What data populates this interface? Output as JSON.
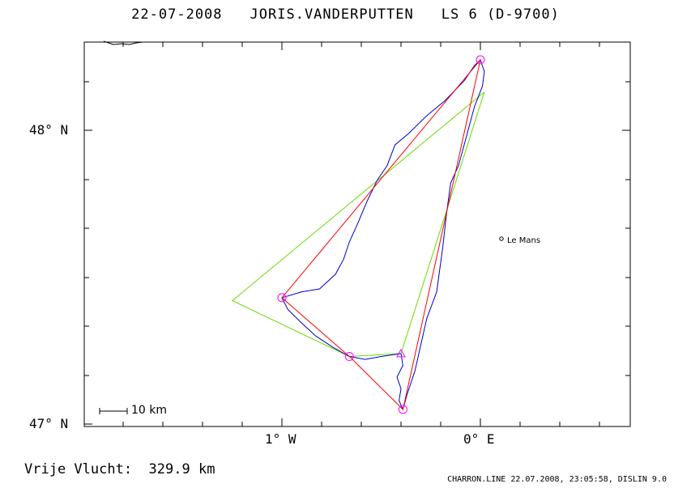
{
  "header": {
    "date": "22-07-2008",
    "pilot": "JORIS.VANDERPUTTEN",
    "glider": "LS 6 (D-9700)"
  },
  "axes": {
    "lat_labels": [
      "48° N",
      "47° N"
    ],
    "lon_labels": [
      "1° W",
      "0° E"
    ]
  },
  "city": {
    "name": "Le Mans",
    "marker": "o"
  },
  "scale": {
    "label": "10 km"
  },
  "summary": {
    "label": "Vrije Vlucht:",
    "distance": "329.9 km"
  },
  "footer": {
    "text": "CHARRON.LINE 22.07.2008, 23:05:58, DISLIN 9.0"
  },
  "colors": {
    "frame": "#000000",
    "track": "#0000cc",
    "free_flight_triangle": "#66dd00",
    "task_legs": "#ff0000",
    "turnpoints": "#ff00ff",
    "dashed_segment": "#00aa00"
  },
  "map": {
    "lon_range": [
      -2.0,
      0.75
    ],
    "lat_range": [
      47.0,
      48.3
    ],
    "task_turnpoints": [
      {
        "lon": 0.0,
        "lat": 48.24
      },
      {
        "lon": -1.0,
        "lat": 47.43
      },
      {
        "lon": -0.66,
        "lat": 47.23
      },
      {
        "lon": -0.39,
        "lat": 47.05
      },
      {
        "lon": -0.0,
        "lat": 48.24
      }
    ],
    "start_triangle": {
      "lon": -0.4,
      "lat": 47.24
    },
    "free_flight_triangle": [
      {
        "lon": 0.02,
        "lat": 48.13
      },
      {
        "lon": -1.25,
        "lat": 47.42
      },
      {
        "lon": -0.66,
        "lat": 47.23
      },
      {
        "lon": -0.4,
        "lat": 47.24
      },
      {
        "lon": 0.02,
        "lat": 48.13
      }
    ],
    "track": [
      {
        "lon": -0.4,
        "lat": 47.24
      },
      {
        "lon": -0.39,
        "lat": 47.2
      },
      {
        "lon": -0.42,
        "lat": 47.16
      },
      {
        "lon": -0.4,
        "lat": 47.12
      },
      {
        "lon": -0.41,
        "lat": 47.08
      },
      {
        "lon": -0.39,
        "lat": 47.05
      },
      {
        "lon": -0.37,
        "lat": 47.1
      },
      {
        "lon": -0.33,
        "lat": 47.18
      },
      {
        "lon": -0.3,
        "lat": 47.27
      },
      {
        "lon": -0.27,
        "lat": 47.36
      },
      {
        "lon": -0.22,
        "lat": 47.45
      },
      {
        "lon": -0.21,
        "lat": 47.5
      },
      {
        "lon": -0.19,
        "lat": 47.6
      },
      {
        "lon": -0.17,
        "lat": 47.72
      },
      {
        "lon": -0.15,
        "lat": 47.82
      },
      {
        "lon": -0.11,
        "lat": 47.88
      },
      {
        "lon": -0.07,
        "lat": 47.98
      },
      {
        "lon": -0.03,
        "lat": 48.08
      },
      {
        "lon": 0.01,
        "lat": 48.15
      },
      {
        "lon": 0.02,
        "lat": 48.2
      },
      {
        "lon": 0.0,
        "lat": 48.24
      },
      {
        "lon": -0.03,
        "lat": 48.22
      },
      {
        "lon": -0.08,
        "lat": 48.17
      },
      {
        "lon": -0.18,
        "lat": 48.1
      },
      {
        "lon": -0.27,
        "lat": 48.05
      },
      {
        "lon": -0.36,
        "lat": 47.99
      },
      {
        "lon": -0.43,
        "lat": 47.95
      },
      {
        "lon": -0.47,
        "lat": 47.88
      },
      {
        "lon": -0.52,
        "lat": 47.83
      },
      {
        "lon": -0.57,
        "lat": 47.76
      },
      {
        "lon": -0.62,
        "lat": 47.68
      },
      {
        "lon": -0.66,
        "lat": 47.62
      },
      {
        "lon": -0.69,
        "lat": 47.56
      },
      {
        "lon": -0.73,
        "lat": 47.51
      },
      {
        "lon": -0.81,
        "lat": 47.46
      },
      {
        "lon": -0.9,
        "lat": 47.45
      },
      {
        "lon": -1.0,
        "lat": 47.43
      },
      {
        "lon": -0.97,
        "lat": 47.39
      },
      {
        "lon": -0.91,
        "lat": 47.35
      },
      {
        "lon": -0.83,
        "lat": 47.3
      },
      {
        "lon": -0.74,
        "lat": 47.26
      },
      {
        "lon": -0.66,
        "lat": 47.23
      },
      {
        "lon": -0.58,
        "lat": 47.22
      },
      {
        "lon": -0.5,
        "lat": 47.23
      },
      {
        "lon": -0.4,
        "lat": 47.24
      }
    ]
  }
}
